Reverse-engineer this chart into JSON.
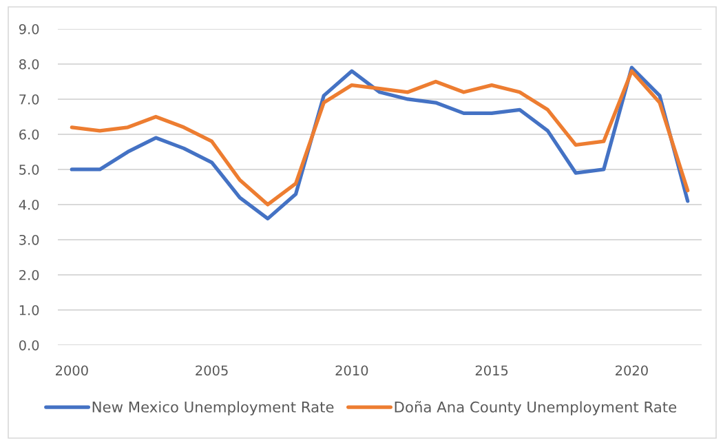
{
  "chart_data": {
    "type": "line",
    "x": [
      2000,
      2001,
      2002,
      2003,
      2004,
      2005,
      2006,
      2007,
      2008,
      2009,
      2010,
      2011,
      2012,
      2013,
      2014,
      2015,
      2016,
      2017,
      2018,
      2019,
      2020,
      2021,
      2022
    ],
    "series": [
      {
        "name": "New Mexico Unemployment Rate",
        "color": "#4472c4",
        "values": [
          5.0,
          5.0,
          5.5,
          5.9,
          5.6,
          5.2,
          4.2,
          3.6,
          4.3,
          7.1,
          7.8,
          7.2,
          7.0,
          6.9,
          6.6,
          6.6,
          6.7,
          6.1,
          4.9,
          5.0,
          7.9,
          7.1,
          4.1
        ]
      },
      {
        "name": "Doña Ana County Unemployment Rate",
        "color": "#ed7d31",
        "values": [
          6.2,
          6.1,
          6.2,
          6.5,
          6.2,
          5.8,
          4.7,
          4.0,
          4.6,
          6.9,
          7.4,
          7.3,
          7.2,
          7.5,
          7.2,
          7.4,
          7.2,
          6.7,
          5.7,
          5.8,
          7.8,
          6.9,
          4.4
        ]
      }
    ],
    "xlim": [
      1999.5,
      2022.5
    ],
    "xticks": [
      2000,
      2005,
      2010,
      2015,
      2020
    ],
    "ylim": [
      0,
      9
    ],
    "yticks": [
      {
        "value": 0,
        "label": "0.0"
      },
      {
        "value": 1,
        "label": "1.0"
      },
      {
        "value": 2,
        "label": "2.0"
      },
      {
        "value": 3,
        "label": "3.0"
      },
      {
        "value": 4,
        "label": "4.0"
      },
      {
        "value": 5,
        "label": "5.0"
      },
      {
        "value": 6,
        "label": "6.0"
      },
      {
        "value": 7,
        "label": "7.0"
      },
      {
        "value": 8,
        "label": "8.0"
      },
      {
        "value": 9,
        "label": "9.0"
      }
    ],
    "grid": "y",
    "legend": "bottom",
    "marker": "none",
    "line_style": "solid"
  }
}
